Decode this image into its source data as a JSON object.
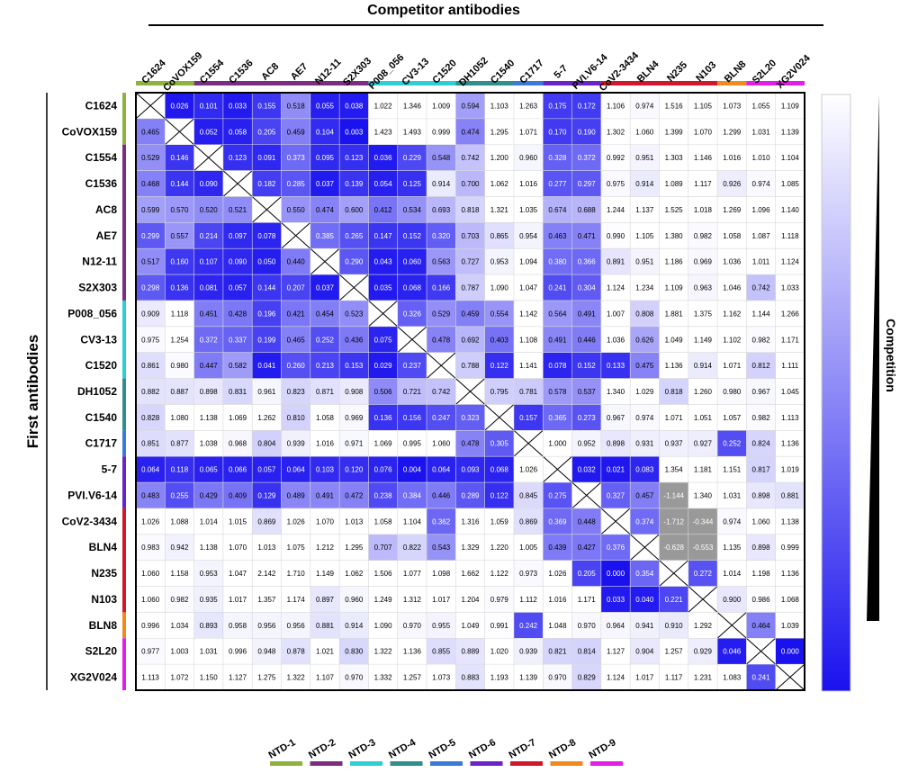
{
  "chart_data": {
    "type": "heatmap",
    "title": "Competitor antibodies",
    "ylabel": "First antibodies",
    "legend_label": "Competition",
    "columns": [
      "C1624",
      "CoVOX159",
      "C1554",
      "C1536",
      "AC8",
      "AE7",
      "N12-11",
      "S2X303",
      "P008_056",
      "CV3-13",
      "C1520",
      "DH1052",
      "C1540",
      "C1717",
      "5-7",
      "PVI.V6-14",
      "CoV2-3434",
      "BLN4",
      "N235",
      "N103",
      "BLN8",
      "S2L20",
      "XG2V024"
    ],
    "rows": [
      "C1624",
      "CoVOX159",
      "C1554",
      "C1536",
      "AC8",
      "AE7",
      "N12-11",
      "S2X303",
      "P008_056",
      "CV3-13",
      "C1520",
      "DH1052",
      "C1540",
      "C1717",
      "5-7",
      "PVI.V6-14",
      "CoV2-3434",
      "BLN4",
      "N235",
      "N103",
      "BLN8",
      "S2L20",
      "XG2V024"
    ],
    "values": [
      [
        null,
        "0.026",
        "0.101",
        "0.033",
        "0.155",
        "0.518",
        "0.055",
        "0.038",
        "1.022",
        "1.346",
        "1.009",
        "0.594",
        "1.103",
        "1.263",
        "0.175",
        "0.172",
        "1.106",
        "0.974",
        "1.516",
        "1.105",
        "1.073",
        "1.055",
        "1.109"
      ],
      [
        "0.465",
        null,
        "0.052",
        "0.058",
        "0.205",
        "0.459",
        "0.104",
        "0.003",
        "1.423",
        "1.493",
        "0.999",
        "0.474",
        "1.295",
        "1.071",
        "0.170",
        "0.190",
        "1.302",
        "1.060",
        "1.399",
        "1.070",
        "1.299",
        "1.031",
        "1.139"
      ],
      [
        "0.529",
        "0.146",
        null,
        "0.123",
        "0.091",
        "0.373",
        "0.095",
        "0.123",
        "0.036",
        "0.229",
        "0.548",
        "0.742",
        "1.200",
        "0.960",
        "0.328",
        "0.372",
        "0.992",
        "0.951",
        "1.303",
        "1.146",
        "1.016",
        "1.010",
        "1.104"
      ],
      [
        "0.468",
        "0.144",
        "0.090",
        null,
        "0.182",
        "0.285",
        "0.037",
        "0.139",
        "0.054",
        "0.125",
        "0.914",
        "0.700",
        "1.062",
        "1.016",
        "0.277",
        "0.297",
        "0.975",
        "0.914",
        "1.089",
        "1.117",
        "0.926",
        "0.974",
        "1.085"
      ],
      [
        "0.599",
        "0.570",
        "0.520",
        "0.521",
        null,
        "0.550",
        "0.474",
        "0.600",
        "0.412",
        "0.534",
        "0.693",
        "0.818",
        "1.321",
        "1.035",
        "0.674",
        "0.688",
        "1.244",
        "1.137",
        "1.525",
        "1.018",
        "1.269",
        "1.096",
        "1.140"
      ],
      [
        "0.299",
        "0.557",
        "0.214",
        "0.097",
        "0.078",
        null,
        "0.385",
        "0.265",
        "0.147",
        "0.152",
        "0.320",
        "0.703",
        "0.865",
        "0.954",
        "0.463",
        "0.471",
        "0.990",
        "1.105",
        "1.380",
        "0.982",
        "1.058",
        "1.087",
        "1.118"
      ],
      [
        "0.517",
        "0.160",
        "0.107",
        "0.090",
        "0.050",
        "0.440",
        null,
        "0.290",
        "0.043",
        "0.060",
        "0.563",
        "0.727",
        "0.953",
        "1.094",
        "0.380",
        "0.366",
        "0.891",
        "0.951",
        "1.186",
        "0.969",
        "1.036",
        "1.011",
        "1.124"
      ],
      [
        "0.298",
        "0.136",
        "0.081",
        "0.057",
        "0.144",
        "0.207",
        "0.037",
        null,
        "0.035",
        "0.068",
        "0.166",
        "0.787",
        "1.090",
        "1.047",
        "0.241",
        "0.304",
        "1.124",
        "1.234",
        "1.109",
        "0.963",
        "1.046",
        "0.742",
        "1.033"
      ],
      [
        "0.909",
        "1.118",
        "0.451",
        "0.428",
        "0.196",
        "0.421",
        "0.454",
        "0.523",
        null,
        "0.326",
        "0.529",
        "0.459",
        "0.554",
        "1.142",
        "0.564",
        "0.491",
        "1.007",
        "0.808",
        "1.881",
        "1.375",
        "1.162",
        "1.144",
        "1.266"
      ],
      [
        "0.975",
        "1.254",
        "0.372",
        "0.337",
        "0.199",
        "0.465",
        "0.252",
        "0.436",
        "0.075",
        null,
        "0.478",
        "0.692",
        "0.403",
        "1.108",
        "0.491",
        "0.446",
        "1.036",
        "0.626",
        "1.049",
        "1.149",
        "1.102",
        "0.982",
        "1.171"
      ],
      [
        "0.861",
        "0.980",
        "0.447",
        "0.582",
        "0.041",
        "0.260",
        "0.213",
        "0.153",
        "0.029",
        "0.237",
        null,
        "0.788",
        "0.122",
        "1.141",
        "0.078",
        "0.152",
        "0.133",
        "0.475",
        "1.136",
        "0.914",
        "1.071",
        "0.812",
        "1.111"
      ],
      [
        "0.882",
        "0.887",
        "0.898",
        "0.831",
        "0.961",
        "0.823",
        "0.871",
        "0.908",
        "0.506",
        "0.721",
        "0.742",
        null,
        "0.795",
        "0.781",
        "0.578",
        "0.537",
        "1.340",
        "1.029",
        "0.818",
        "1.260",
        "0.980",
        "0.967",
        "1.045"
      ],
      [
        "0.828",
        "1.080",
        "1.138",
        "1.069",
        "1.262",
        "0.810",
        "1.058",
        "0.969",
        "0.136",
        "0.156",
        "0.247",
        "0.323",
        null,
        "0.157",
        "0.365",
        "0.273",
        "0.967",
        "0.974",
        "1.071",
        "1.051",
        "1.057",
        "0.982",
        "1.113"
      ],
      [
        "0.851",
        "0.877",
        "1.038",
        "0.968",
        "0.804",
        "0.939",
        "1.016",
        "0.971",
        "1.069",
        "0.995",
        "1.060",
        "0.478",
        "0.305",
        null,
        "1.000",
        "0.952",
        "0.898",
        "0.931",
        "0.937",
        "0.927",
        "0.252",
        "0.824",
        "1.136"
      ],
      [
        "0.064",
        "0.118",
        "0.065",
        "0.066",
        "0.057",
        "0.064",
        "0.103",
        "0.120",
        "0.076",
        "0.004",
        "0.064",
        "0.093",
        "0.068",
        "1.026",
        null,
        "0.032",
        "0.021",
        "0.083",
        "1.354",
        "1.181",
        "1.151",
        "0.817",
        "1.019"
      ],
      [
        "0.483",
        "0.255",
        "0.429",
        "0.409",
        "0.129",
        "0.489",
        "0.491",
        "0.472",
        "0.238",
        "0.384",
        "0.446",
        "0.289",
        "0.122",
        "0.845",
        "0.275",
        null,
        "0.327",
        "0.457",
        "-1.144",
        "1.340",
        "1.031",
        "0.898",
        "0.881"
      ],
      [
        "1.026",
        "1.088",
        "1.014",
        "1.015",
        "0.869",
        "1.026",
        "1.070",
        "1.013",
        "1.058",
        "1.104",
        "0.362",
        "1.316",
        "1.059",
        "0.869",
        "0.369",
        "0.448",
        null,
        "0.374",
        "-1.712",
        "-0.344",
        "0.974",
        "1.060",
        "1.138"
      ],
      [
        "0.983",
        "0.942",
        "1.138",
        "1.070",
        "1.013",
        "1.075",
        "1.212",
        "1.295",
        "0.707",
        "0.822",
        "0.543",
        "1.329",
        "1.220",
        "1.005",
        "0.439",
        "0.427",
        "0.376",
        null,
        "-0.628",
        "-0.553",
        "1.135",
        "0.898",
        "0.999"
      ],
      [
        "1.060",
        "1.158",
        "0.953",
        "1.047",
        "2.142",
        "1.710",
        "1.149",
        "1.062",
        "1.506",
        "1.077",
        "1.098",
        "1.662",
        "1.122",
        "0.973",
        "1.026",
        "0.205",
        "0.000",
        "0.354",
        null,
        "0.272",
        "1.014",
        "1.198",
        "1.136"
      ],
      [
        "1.060",
        "0.982",
        "0.935",
        "1.017",
        "1.357",
        "1.174",
        "0.897",
        "0.960",
        "1.249",
        "1.312",
        "1.017",
        "1.204",
        "0.979",
        "1.112",
        "1.016",
        "1.171",
        "0.033",
        "0.040",
        "0.221",
        null,
        "0.900",
        "0.986",
        "1.068"
      ],
      [
        "0.996",
        "1.034",
        "0.893",
        "0.958",
        "0.956",
        "0.956",
        "0.881",
        "0.914",
        "1.090",
        "0.970",
        "0.955",
        "1.049",
        "0.991",
        "0.242",
        "1.048",
        "0.970",
        "0.964",
        "0.941",
        "0.910",
        "1.292",
        null,
        "0.464",
        "1.039"
      ],
      [
        "0.977",
        "1.003",
        "1.031",
        "0.996",
        "0.948",
        "0.878",
        "1.021",
        "0.830",
        "1.322",
        "1.136",
        "0.855",
        "0.889",
        "1.020",
        "0.939",
        "0.821",
        "0.814",
        "1.127",
        "0.904",
        "1.257",
        "0.929",
        "0.046",
        null,
        "0.000"
      ],
      [
        "1.113",
        "1.072",
        "1.150",
        "1.127",
        "1.275",
        "1.322",
        "1.107",
        "0.970",
        "1.332",
        "1.257",
        "1.073",
        "0.883",
        "1.193",
        "1.139",
        "0.970",
        "0.829",
        "1.124",
        "1.017",
        "1.117",
        "1.231",
        "1.083",
        "0.241",
        null
      ]
    ],
    "groups": [
      {
        "name": "NTD-1",
        "color": "#8db33b",
        "members": [
          "C1624",
          "CoVOX159"
        ]
      },
      {
        "name": "NTD-2",
        "color": "#7b2d82",
        "members": [
          "C1554",
          "C1536",
          "AC8",
          "AE7",
          "N12-11",
          "S2X303"
        ]
      },
      {
        "name": "NTD-3",
        "color": "#2ccfd6",
        "members": [
          "P008_056",
          "CV3-13",
          "C1520"
        ]
      },
      {
        "name": "NTD-4",
        "color": "#2f8f8a",
        "members": [
          "DH1052",
          "C1540"
        ]
      },
      {
        "name": "NTD-5",
        "color": "#3a7bd5",
        "members": [
          "C1717"
        ]
      },
      {
        "name": "NTD-6",
        "color": "#6a22c9",
        "members": [
          "5-7",
          "PVI.V6-14"
        ]
      },
      {
        "name": "NTD-7",
        "color": "#d1162e",
        "members": [
          "CoV2-3434",
          "BLN4",
          "N235",
          "N103"
        ]
      },
      {
        "name": "NTD-8",
        "color": "#f08a1c",
        "members": [
          "BLN8"
        ]
      },
      {
        "name": "NTD-9",
        "color": "#e11fe6",
        "members": [
          "S2L20",
          "XG2V024"
        ]
      }
    ],
    "colors": {
      "strong": "#1a12ee",
      "weak": "#ffffff",
      "negative": "#999999"
    }
  }
}
